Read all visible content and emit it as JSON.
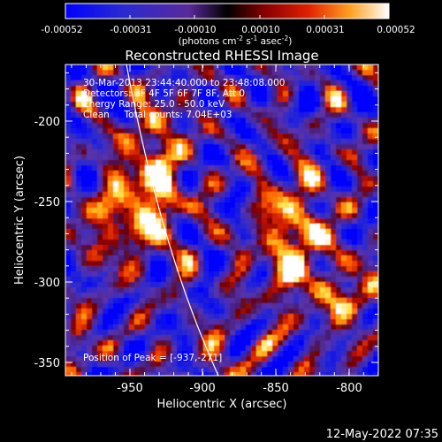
{
  "colorbar": {
    "tick_labels": [
      "-0.00052",
      "-0.00031",
      "-0.00010",
      "0.00010",
      "0.00031",
      "0.00052"
    ],
    "units_base": "(photons cm",
    "units_exp1": "-2",
    "units_mid1": " s",
    "units_exp2": "-1",
    "units_mid2": " asec",
    "units_exp3": "-2",
    "units_end": ")"
  },
  "title": "Reconstructed RHESSI Image",
  "annotations": {
    "time_range": "30-Mar-2013 23:44:40.000 to 23:48:08.000",
    "detectors": "Detectors: 3F 4F 5F 6F 7F 8F, Att 0",
    "energy_range": "Energy Range: 25.0 - 50.0 keV",
    "clean_counts": "Clean     Total counts: 7.04E+03",
    "peak_position": "Position of Peak = [-937,-271]"
  },
  "axes": {
    "xlabel": "Heliocentric X (arcsec)",
    "ylabel": "Heliocentric Y (arcsec)",
    "x_ticks": [
      "-950",
      "-900",
      "-850",
      "-800"
    ],
    "y_ticks": [
      "-200",
      "-250",
      "-300",
      "-350"
    ]
  },
  "footer_timestamp": "12-May-2022 07:35",
  "colors": {
    "background": "#000000",
    "limb_line": "#ffffff"
  }
}
